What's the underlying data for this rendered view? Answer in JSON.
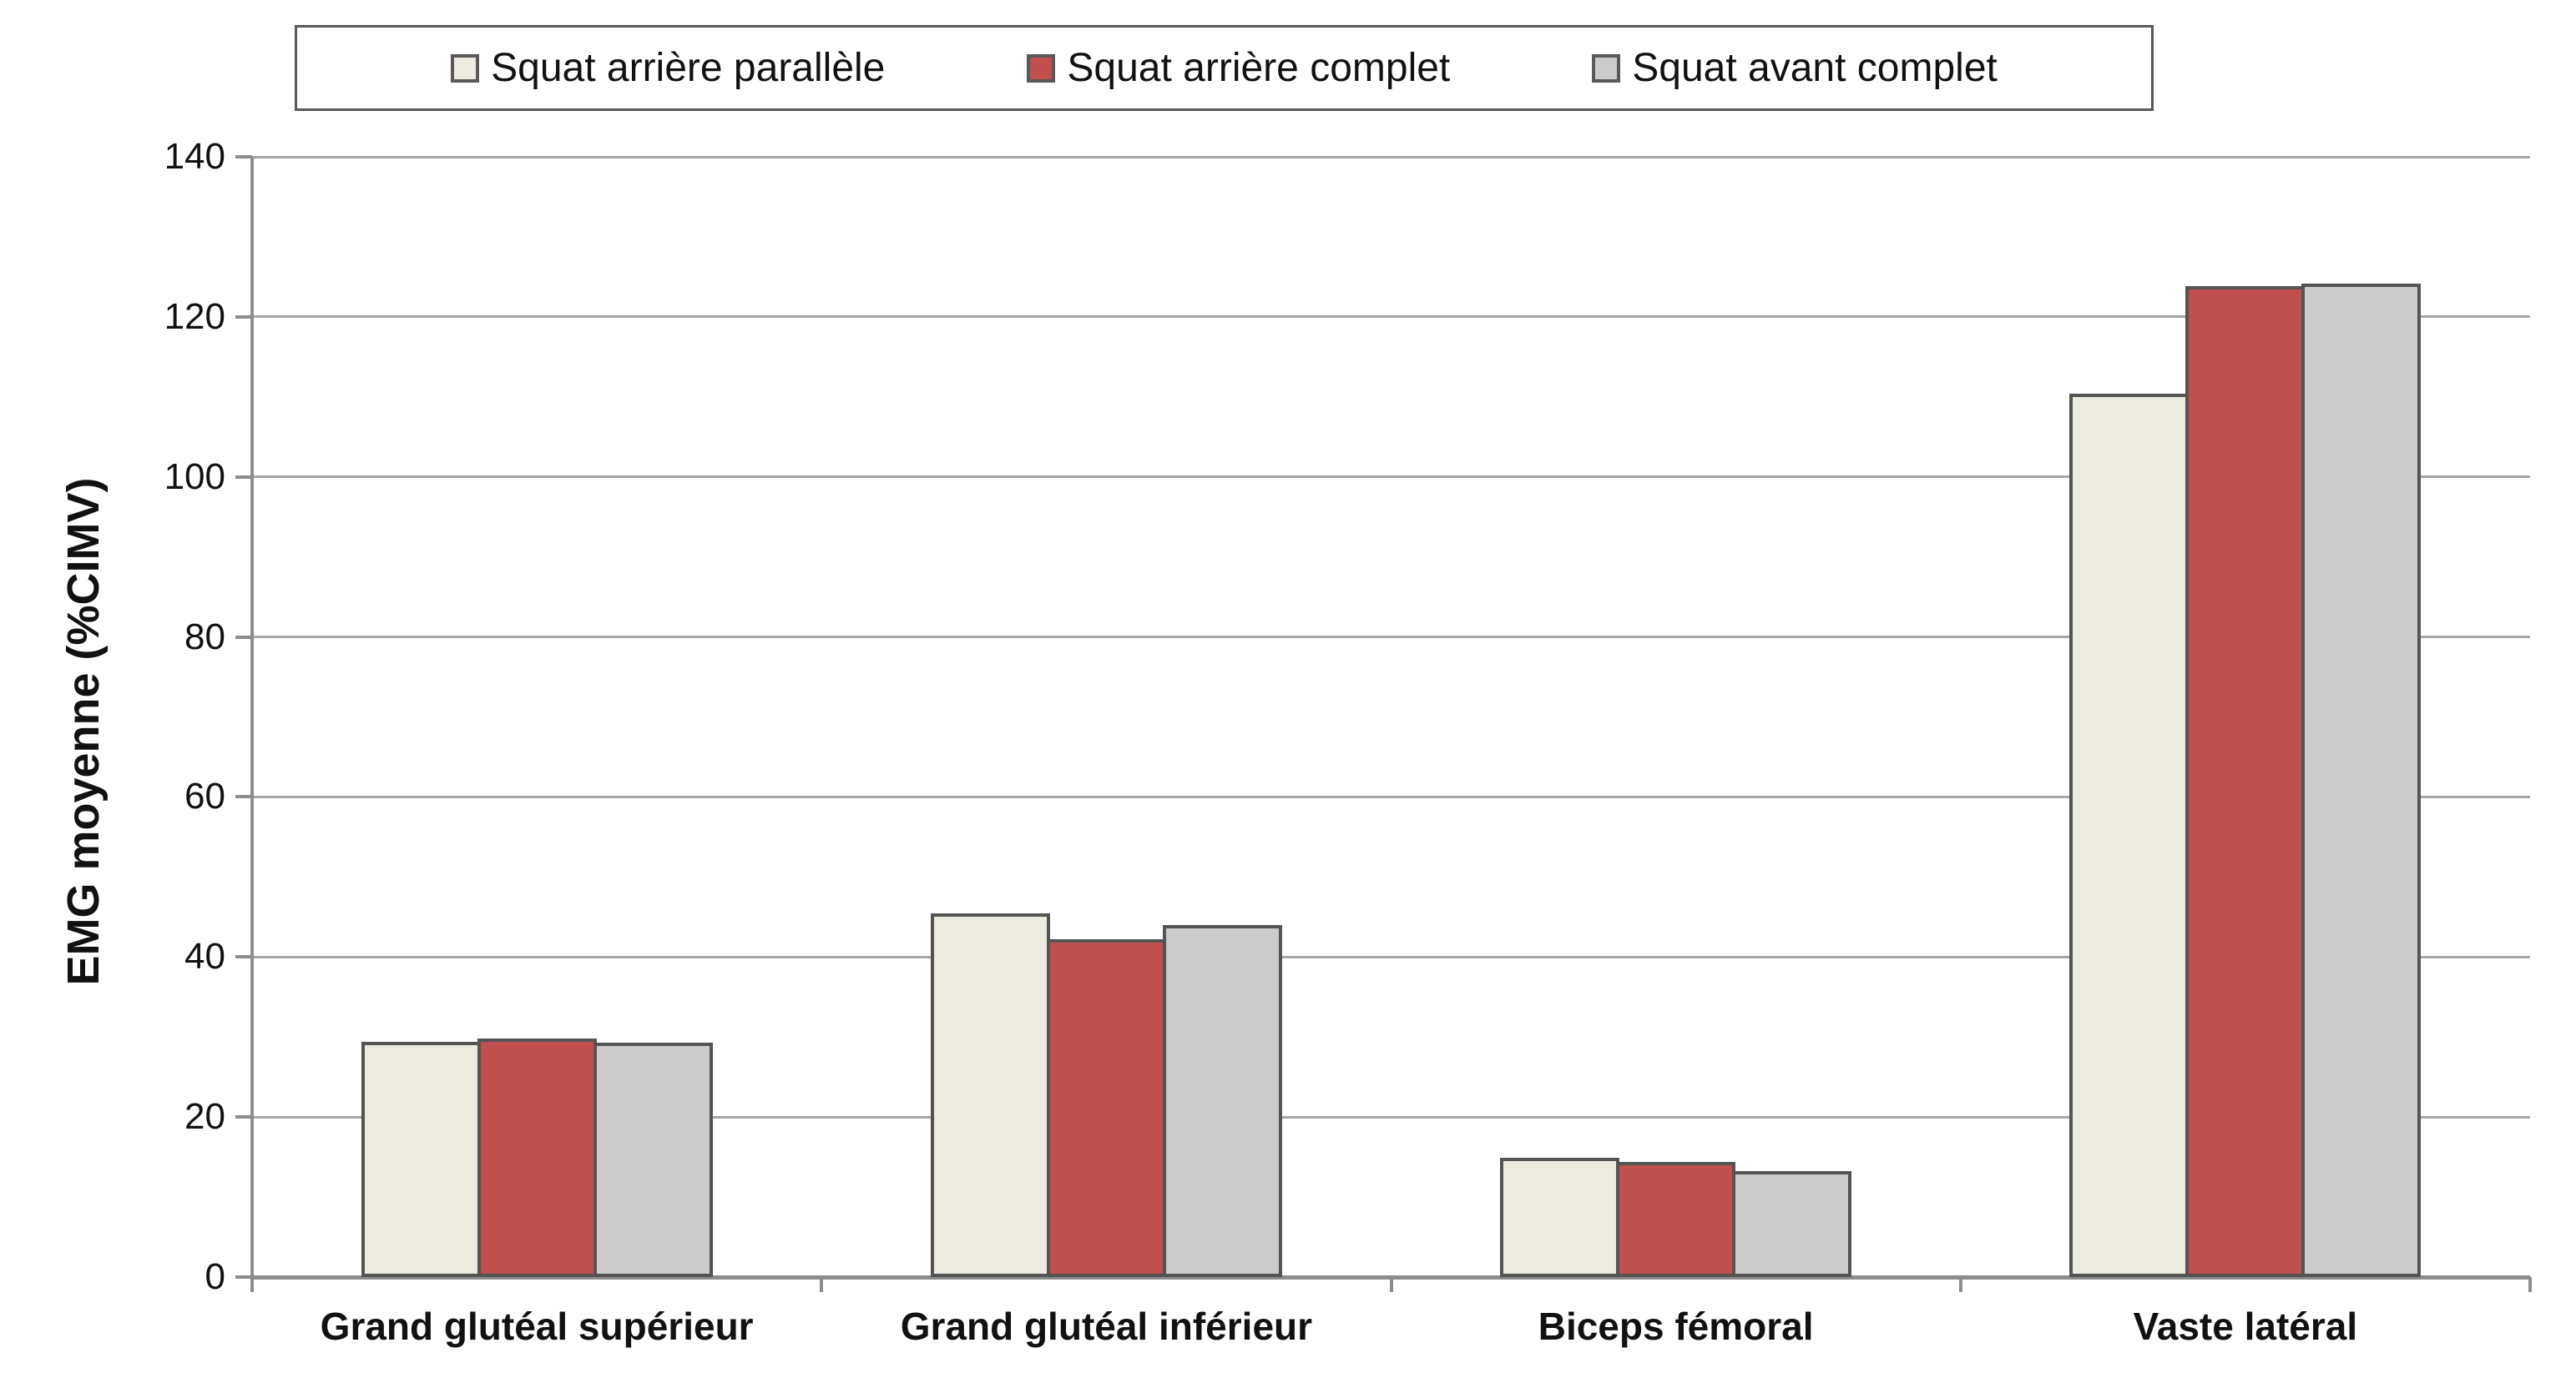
{
  "chart_data": {
    "type": "bar",
    "title": "",
    "categories": [
      "Grand glutéal supérieur",
      "Grand glutéal inférieur",
      "Biceps fémoral",
      "Vaste latéral"
    ],
    "series": [
      {
        "name": "Squat arrière parallèle",
        "color": "#EDEBE0",
        "values": [
          29.4,
          45.4,
          14.9,
          110.4
        ]
      },
      {
        "name": "Squat arrière complet",
        "color": "#C0504D",
        "values": [
          29.8,
          42.2,
          14.4,
          123.8
        ]
      },
      {
        "name": "Squat avant complet",
        "color": "#CBCBCB",
        "values": [
          29.3,
          44.0,
          13.2,
          124.2
        ]
      }
    ],
    "xlabel": "",
    "ylabel": "EMG moyenne (%CIMV)",
    "ylim": [
      0,
      140
    ],
    "ytick_step": 20,
    "ytick_labels": [
      "0",
      "20",
      "40",
      "60",
      "80",
      "100",
      "120",
      "140"
    ],
    "grid": "horizontal",
    "legend_position": "top",
    "colors": {
      "background": "#FFFFFF",
      "gridline": "#A6A6A6",
      "axis": "#8C8C8C",
      "bar_border": "#545454",
      "legend_border": "#595959",
      "text": "#111111"
    }
  }
}
